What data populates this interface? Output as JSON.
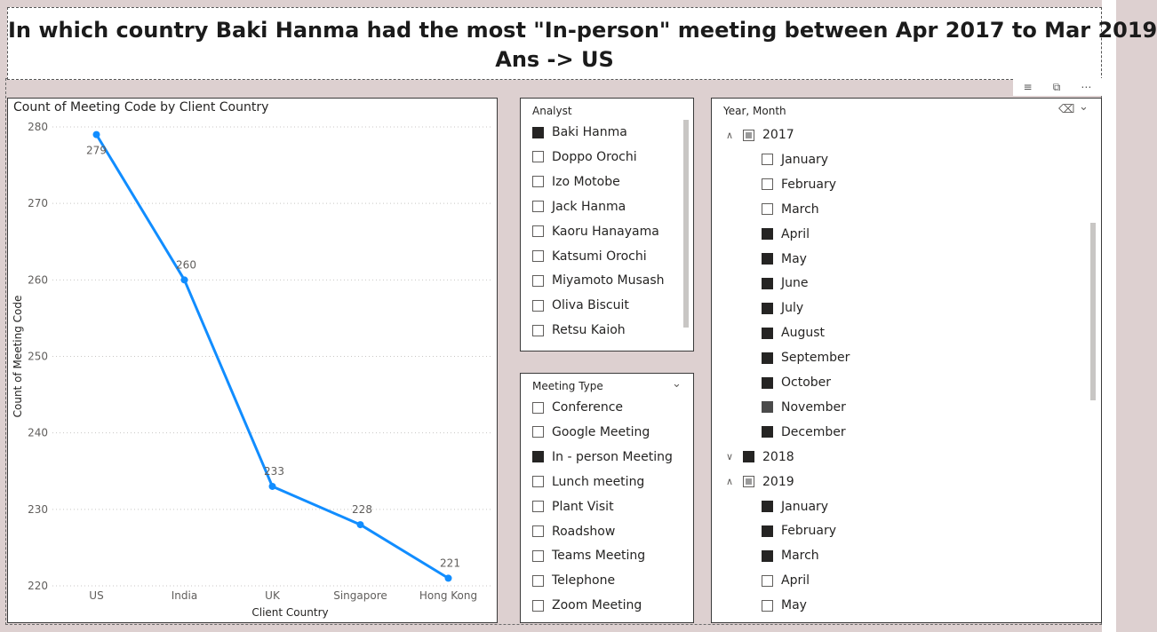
{
  "title": {
    "question": "In which country Baki Hanma had the most \"In-person\" meeting between Apr 2017 to Mar 2019",
    "answer": "Ans -> US"
  },
  "visual_header_icons": [
    "filter-icon",
    "focus-mode-icon",
    "more-options-icon"
  ],
  "chart": {
    "title": "Count of Meeting Code by Client Country"
  },
  "chart_data": {
    "type": "line",
    "title": "Count of Meeting Code by Client Country",
    "xlabel": "Client Country",
    "ylabel": "Count of Meeting Code",
    "categories": [
      "US",
      "India",
      "UK",
      "Singapore",
      "Hong Kong"
    ],
    "values": [
      279,
      260,
      233,
      228,
      221
    ],
    "data_labels": [
      "279",
      "260",
      "233",
      "228",
      "221"
    ],
    "ylim": [
      220,
      280
    ],
    "yticks": [
      "280",
      "270",
      "260",
      "250",
      "240",
      "230",
      "220"
    ],
    "grid": true,
    "color": "#118dff"
  },
  "analyst_slicer": {
    "header": "Analyst",
    "items": [
      {
        "label": "Baki Hanma",
        "state": "on"
      },
      {
        "label": "Doppo Orochi",
        "state": "off"
      },
      {
        "label": "Izo Motobe",
        "state": "off"
      },
      {
        "label": "Jack Hanma",
        "state": "off"
      },
      {
        "label": "Kaoru Hanayama",
        "state": "off"
      },
      {
        "label": "Katsumi Orochi",
        "state": "off"
      },
      {
        "label": "Miyamoto Musash",
        "state": "off"
      },
      {
        "label": "Oliva Biscuit",
        "state": "off"
      },
      {
        "label": "Retsu Kaioh",
        "state": "off"
      }
    ]
  },
  "meeting_type_slicer": {
    "header": "Meeting Type",
    "items": [
      {
        "label": "Conference",
        "state": "off"
      },
      {
        "label": "Google Meeting",
        "state": "off"
      },
      {
        "label": "In - person Meeting",
        "state": "on"
      },
      {
        "label": "Lunch meeting",
        "state": "off"
      },
      {
        "label": "Plant Visit",
        "state": "off"
      },
      {
        "label": "Roadshow",
        "state": "off"
      },
      {
        "label": "Teams Meeting",
        "state": "off"
      },
      {
        "label": "Telephone",
        "state": "off"
      },
      {
        "label": "Zoom Meeting",
        "state": "off"
      }
    ]
  },
  "year_month_slicer": {
    "header": "Year, Month",
    "rows": [
      {
        "label": "2017",
        "level": 0,
        "expanded": true,
        "state": "mixed"
      },
      {
        "label": "January",
        "level": 1,
        "state": "off"
      },
      {
        "label": "February",
        "level": 1,
        "state": "off"
      },
      {
        "label": "March",
        "level": 1,
        "state": "off"
      },
      {
        "label": "April",
        "level": 1,
        "state": "on"
      },
      {
        "label": "May",
        "level": 1,
        "state": "on"
      },
      {
        "label": "June",
        "level": 1,
        "state": "on"
      },
      {
        "label": "July",
        "level": 1,
        "state": "on"
      },
      {
        "label": "August",
        "level": 1,
        "state": "on"
      },
      {
        "label": "September",
        "level": 1,
        "state": "on"
      },
      {
        "label": "October",
        "level": 1,
        "state": "on"
      },
      {
        "label": "November",
        "level": 1,
        "state": "partial"
      },
      {
        "label": "December",
        "level": 1,
        "state": "on"
      },
      {
        "label": "2018",
        "level": 0,
        "expanded": false,
        "state": "on"
      },
      {
        "label": "2019",
        "level": 0,
        "expanded": true,
        "state": "mixed"
      },
      {
        "label": "January",
        "level": 1,
        "state": "on"
      },
      {
        "label": "February",
        "level": 1,
        "state": "on"
      },
      {
        "label": "March",
        "level": 1,
        "state": "on"
      },
      {
        "label": "April",
        "level": 1,
        "state": "off"
      },
      {
        "label": "May",
        "level": 1,
        "state": "off"
      }
    ]
  }
}
